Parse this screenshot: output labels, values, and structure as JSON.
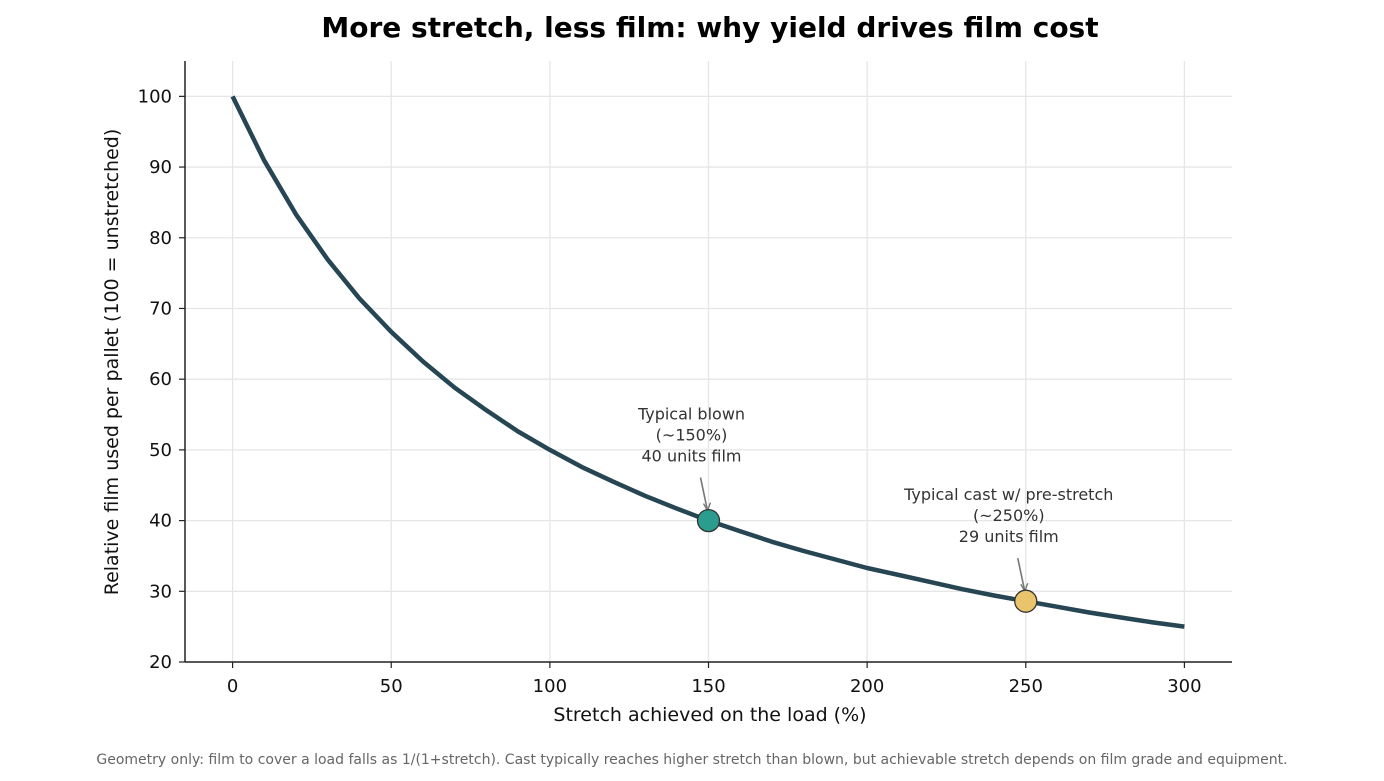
{
  "chart_data": {
    "type": "line",
    "title": "More stretch, less film: why yield drives film cost",
    "xlabel": "Stretch achieved on the load (%)",
    "ylabel": "Relative film used per pallet (100 = unstretched)",
    "xlim": [
      -15,
      315
    ],
    "ylim": [
      20,
      105
    ],
    "x_ticks": [
      0,
      50,
      100,
      150,
      200,
      250,
      300
    ],
    "y_ticks": [
      20,
      30,
      40,
      50,
      60,
      70,
      80,
      90,
      100
    ],
    "grid": true,
    "series": [
      {
        "color": "#264653",
        "x": [
          0,
          10,
          20,
          30,
          40,
          50,
          60,
          70,
          80,
          90,
          100,
          110,
          120,
          130,
          140,
          150,
          160,
          170,
          180,
          190,
          200,
          210,
          220,
          230,
          240,
          250,
          260,
          270,
          280,
          290,
          300
        ],
        "values": [
          100,
          90.9,
          83.3,
          76.9,
          71.4,
          66.7,
          62.5,
          58.8,
          55.6,
          52.6,
          50,
          47.6,
          45.5,
          43.5,
          41.7,
          40,
          38.5,
          37,
          35.7,
          34.5,
          33.3,
          32.3,
          31.3,
          30.3,
          29.4,
          28.6,
          27.8,
          27,
          26.3,
          25.6,
          25
        ]
      }
    ],
    "markers": [
      {
        "x": 150,
        "y": 40,
        "color": "#2a9d8f",
        "label_lines": [
          "Typical blown",
          "(~150%)",
          "40 units film"
        ]
      },
      {
        "x": 250,
        "y": 28.6,
        "color": "#e9c46a",
        "label_lines": [
          "Typical cast w/ pre-stretch",
          "(~250%)",
          "29 units film"
        ]
      }
    ],
    "footnote": "Geometry only: film to cover a load falls as 1/(1+stretch). Cast typically reaches higher stretch than blown, but achievable stretch depends on film grade and equipment."
  }
}
